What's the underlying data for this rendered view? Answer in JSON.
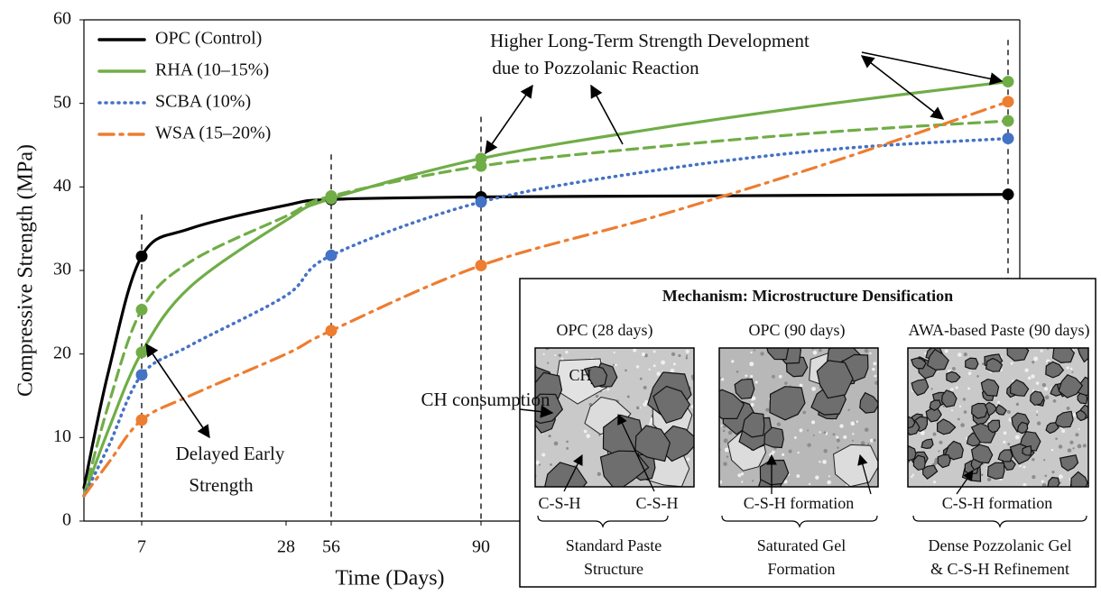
{
  "chart_data": {
    "type": "line",
    "x_label": "Time (Days)",
    "y_label": "Compressive Strength (MPa)",
    "x": [
      0,
      3,
      7,
      14,
      28,
      56,
      90,
      120,
      150,
      180
    ],
    "xlim": [
      0,
      180
    ],
    "xticks": [
      7,
      28,
      56,
      90
    ],
    "ylim": [
      0,
      60
    ],
    "yticks": [
      0,
      10,
      20,
      30,
      40,
      50,
      60
    ],
    "markers_at": [
      7,
      56,
      90,
      180
    ],
    "reference_days": [
      7,
      56,
      90,
      180
    ],
    "series": [
      {
        "name": "OPC (Control)",
        "color": "#000000",
        "style": "solid",
        "values": [
          4,
          18,
          31.7,
          35,
          37.8,
          38.5,
          38.8,
          38.9,
          39,
          39.1
        ]
      },
      {
        "name": "RHA  (10–15%)",
        "color": "#70ad47",
        "style": "solid",
        "values": [
          3,
          11,
          20.2,
          28,
          36,
          38.6,
          43.4,
          47,
          50,
          52.6
        ]
      },
      {
        "color": "#70ad47",
        "style": "dashed",
        "values": [
          3,
          14,
          25.3,
          31,
          36.5,
          38.9,
          42.5,
          44.8,
          46.6,
          47.9
        ]
      },
      {
        "name": "SCBA (10%)",
        "color": "#4472c4",
        "style": "dotted",
        "values": [
          3,
          9,
          17.5,
          21,
          27,
          31.8,
          38.2,
          42,
          44.5,
          45.8
        ]
      },
      {
        "name": "WSA (15–20%)",
        "color": "#ed7d31",
        "style": "dashdot",
        "values": [
          3,
          7,
          12.1,
          15,
          20,
          22.8,
          30.6,
          36.5,
          43,
          50.2
        ]
      }
    ],
    "annotations": [
      "Higher Long-Term Strength Development",
      "due to Pozzolanic Reaction",
      "Delayed Early",
      "Strength",
      "CH consumption"
    ]
  },
  "inset": {
    "title": "Mechanism: Microstructure Densification",
    "panels": [
      {
        "label": "OPC (28 days)",
        "phase": "CH",
        "products": [
          "C-S-H",
          "C-S-H"
        ],
        "caption": [
          "Standard Paste",
          "Structure"
        ]
      },
      {
        "label": "OPC (90 days)",
        "products": [
          "C-S-H formation"
        ],
        "caption": [
          "Saturated Gel",
          "Formation"
        ]
      },
      {
        "label": "AWA-based Paste (90 days)",
        "products": [
          "C-S-H formation"
        ],
        "caption": [
          "Dense Pozzolanic Gel",
          "& C-S-H Refinement"
        ]
      }
    ]
  }
}
